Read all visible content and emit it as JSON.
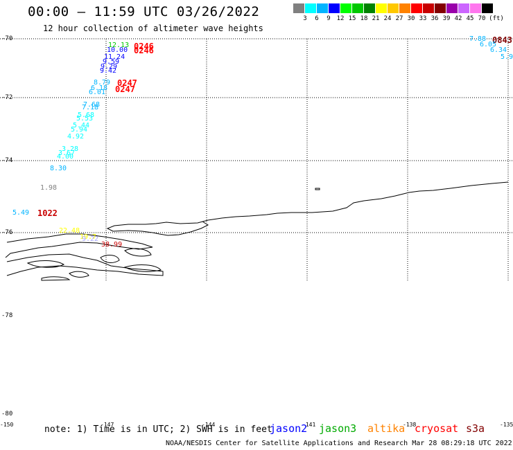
{
  "header": {
    "title": "00:00 – 11:59 UTC 03/26/2022",
    "subtitle": "12 hour collection of altimeter wave heights"
  },
  "colorbar": {
    "colors": [
      "#808080",
      "#00ffff",
      "#00b4ff",
      "#0000ff",
      "#00ff00",
      "#00c800",
      "#008200",
      "#ffff00",
      "#ffc800",
      "#ff8200",
      "#ff0000",
      "#c80000",
      "#820000",
      "#9900aa",
      "#cc66ff",
      "#ff77ee",
      "#000000"
    ],
    "labels": [
      "3",
      "6",
      "9",
      "12",
      "15",
      "18",
      "21",
      "24",
      "27",
      "30",
      "33",
      "36",
      "39",
      "42",
      "45",
      "70",
      "(ft)"
    ]
  },
  "lat_labels": [
    "-70",
    "-72",
    "-74",
    "-76",
    "-78",
    "-80"
  ],
  "lon_labels": [
    "-150",
    "-147",
    "-144",
    "-141",
    "-138",
    "-135"
  ],
  "observations": [
    {
      "text": "12.13",
      "color": "#00c800",
      "big": false
    },
    {
      "text": "10.00",
      "color": "#0000ff",
      "big": false
    },
    {
      "text": "0246",
      "color": "#ff0000",
      "big": true
    },
    {
      "text": "0246",
      "color": "#ff0000",
      "big": true
    },
    {
      "text": "11.24",
      "color": "#0000ff",
      "big": false
    },
    {
      "text": "9.59",
      "color": "#0000ff",
      "big": false
    },
    {
      "text": "9.29",
      "color": "#0000ff",
      "big": false
    },
    {
      "text": "9.42",
      "color": "#0000ff",
      "big": false
    },
    {
      "text": "8.79",
      "color": "#00b4ff",
      "big": false
    },
    {
      "text": "0247",
      "color": "#ff0000",
      "big": true
    },
    {
      "text": "6.18",
      "color": "#00b4ff",
      "big": false
    },
    {
      "text": "0247",
      "color": "#ff0000",
      "big": true
    },
    {
      "text": "6.01",
      "color": "#00b4ff",
      "big": false
    },
    {
      "text": "7.68",
      "color": "#00b4ff",
      "big": false
    },
    {
      "text": "7.18",
      "color": "#00b4ff",
      "big": false
    },
    {
      "text": "5.68",
      "color": "#00ffff",
      "big": false
    },
    {
      "text": "5.53",
      "color": "#00ffff",
      "big": false
    },
    {
      "text": "5.44",
      "color": "#00ffff",
      "big": false
    },
    {
      "text": "5.94",
      "color": "#00ffff",
      "big": false
    },
    {
      "text": "4.92",
      "color": "#00ffff",
      "big": false
    },
    {
      "text": "3.28",
      "color": "#00ffff",
      "big": false
    },
    {
      "text": "3.67",
      "color": "#00ffff",
      "big": false
    },
    {
      "text": "4.00",
      "color": "#00ffff",
      "big": false
    },
    {
      "text": "8.30",
      "color": "#00b4ff",
      "big": false
    },
    {
      "text": "1.98",
      "color": "#808080",
      "big": false
    },
    {
      "text": "5.49",
      "color": "#00b4ff",
      "big": false
    },
    {
      "text": "1022",
      "color": "#c80000",
      "big": true
    },
    {
      "text": "22.48",
      "color": "#ffff00",
      "big": false
    },
    {
      "text": "19.7",
      "color": "#ffff00",
      "big": false
    },
    {
      "text": "9.22",
      "color": "#aaaaff",
      "big": false
    },
    {
      "text": "38.99",
      "color": "#c80000",
      "big": false
    },
    {
      "text": "7.88",
      "color": "#00b4ff",
      "big": false
    },
    {
      "text": "0843",
      "color": "#820000",
      "big": true
    },
    {
      "text": "6.05",
      "color": "#00b4ff",
      "big": false
    },
    {
      "text": "6.34",
      "color": "#00b4ff",
      "big": false
    },
    {
      "text": "5.9",
      "color": "#00b4ff",
      "big": false
    }
  ],
  "footer": {
    "note": "note: 1) Time is in UTC; 2) SWH is in feet",
    "legend": [
      {
        "name": "jason2",
        "color": "#0000ff"
      },
      {
        "name": "jason3",
        "color": "#00aa00"
      },
      {
        "name": "altika",
        "color": "#ff8200"
      },
      {
        "name": "cryosat",
        "color": "#ff0000"
      },
      {
        "name": "s3a",
        "color": "#820000"
      }
    ],
    "credit": "NOAA/NESDIS Center for Satellite Applications and Research   Mar 28 08:29:18 UTC 2022"
  }
}
